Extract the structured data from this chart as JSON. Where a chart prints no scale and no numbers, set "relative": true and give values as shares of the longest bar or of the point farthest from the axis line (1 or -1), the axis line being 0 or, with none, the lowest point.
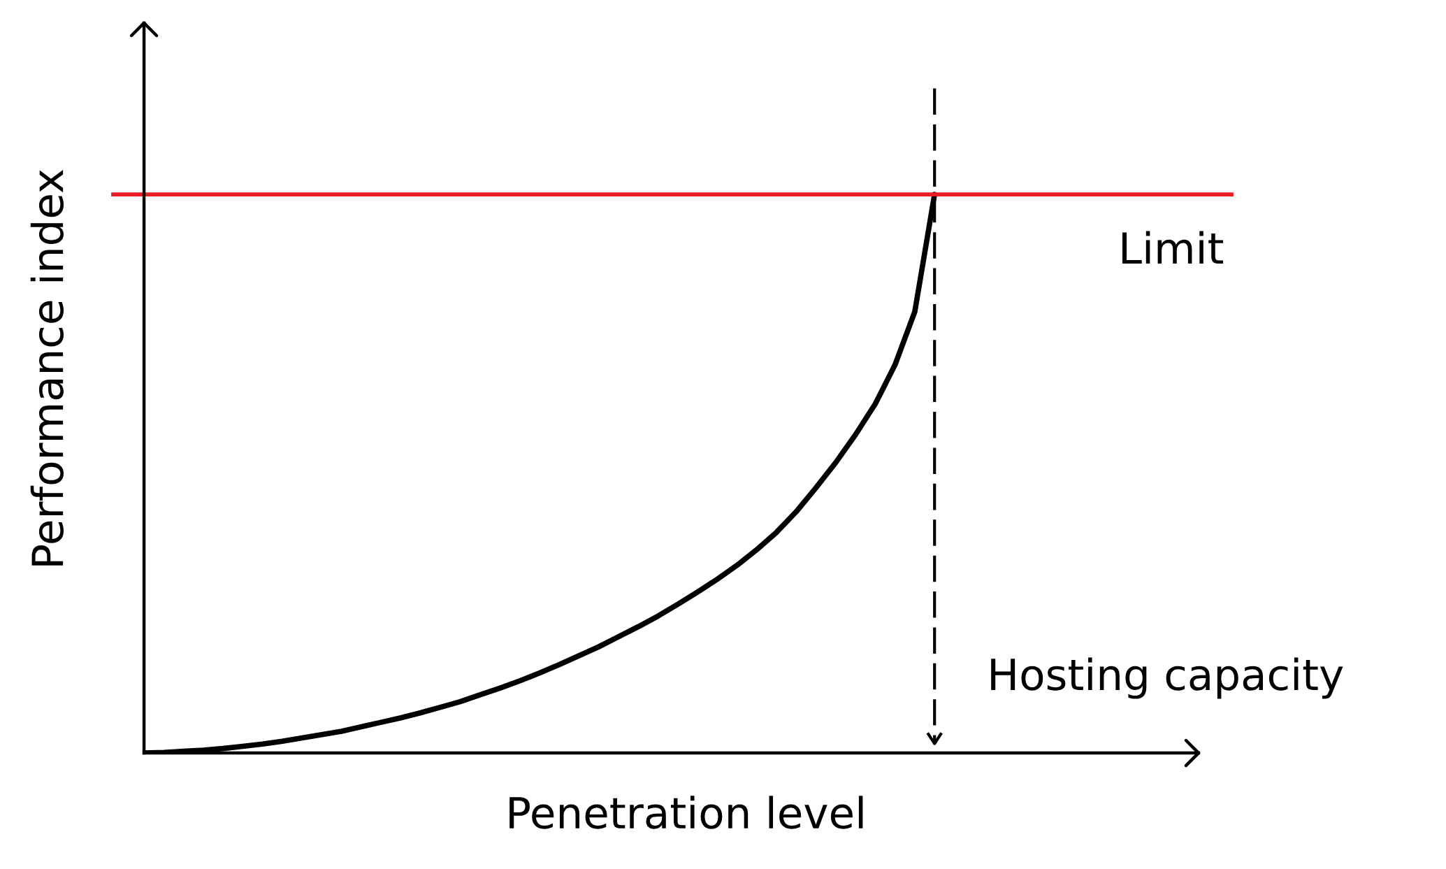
{
  "chart_data": {
    "type": "line",
    "xlabel": "Penetration level",
    "ylabel": "Performance index",
    "relative": true,
    "line_style": "solid",
    "categories": [
      null,
      null,
      null,
      null,
      null,
      null,
      null,
      null,
      null,
      null,
      null,
      null,
      null,
      null,
      null,
      null,
      null,
      null,
      null,
      null,
      null,
      null,
      null,
      null,
      null,
      null,
      null,
      null,
      null,
      null,
      null,
      null,
      null,
      null,
      null,
      null,
      null,
      null,
      null,
      null,
      null
    ],
    "series": [
      {
        "color": "#000000",
        "values": [
          0,
          0.001,
          0.003,
          0.005,
          0.008,
          0.012,
          0.016,
          0.021,
          0.027,
          0.033,
          0.039,
          0.047,
          0.055,
          0.063,
          0.072,
          0.082,
          0.092,
          0.104,
          0.116,
          0.129,
          0.143,
          0.158,
          0.174,
          0.19,
          0.208,
          0.226,
          0.245,
          0.266,
          0.288,
          0.311,
          0.336,
          0.364,
          0.395,
          0.432,
          0.475,
          0.52,
          0.57,
          0.625,
          0.695,
          0.79,
          1.0
        ]
      }
    ],
    "ref_lines": [
      {
        "axis": "y",
        "value": 1.0,
        "label": "Limit",
        "color": "#ec1c24"
      }
    ],
    "annotations": [
      "Hosting capacity"
    ]
  }
}
